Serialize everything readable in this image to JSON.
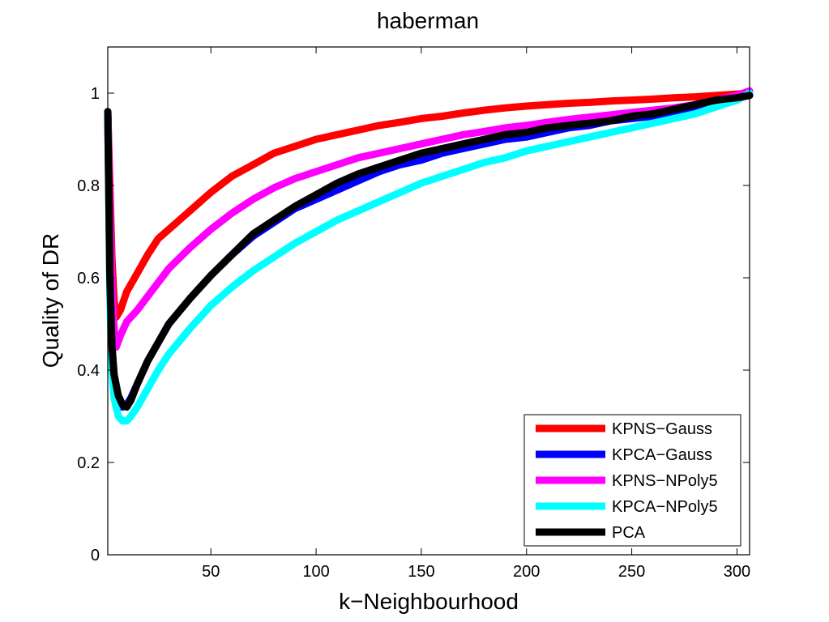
{
  "chart_data": {
    "type": "line",
    "title": "haberman",
    "xlabel": "k−Neighbourhood",
    "ylabel": "Quality of DR",
    "xlim": [
      1,
      306
    ],
    "ylim": [
      0,
      1.1
    ],
    "xticks": [
      50,
      100,
      150,
      200,
      250,
      300
    ],
    "yticks": [
      0,
      0.2,
      0.4,
      0.6,
      0.8,
      1
    ],
    "xtick_labels": [
      "50",
      "100",
      "150",
      "200",
      "250",
      "300"
    ],
    "ytick_labels": [
      "0",
      "0.2",
      "0.4",
      "0.6",
      "0.8",
      "1"
    ],
    "grid": false,
    "legend_position": "bottom-right",
    "series": [
      {
        "name": "KPNS−Gauss",
        "color": "#ff0000",
        "x": [
          1,
          2,
          3,
          4,
          5,
          7,
          10,
          15,
          20,
          25,
          30,
          40,
          50,
          60,
          70,
          80,
          90,
          100,
          110,
          120,
          130,
          140,
          150,
          160,
          170,
          180,
          190,
          200,
          210,
          220,
          230,
          240,
          250,
          260,
          270,
          280,
          290,
          300,
          306
        ],
        "y": [
          0.96,
          0.8,
          0.64,
          0.55,
          0.515,
          0.53,
          0.57,
          0.61,
          0.65,
          0.685,
          0.705,
          0.745,
          0.785,
          0.82,
          0.845,
          0.87,
          0.885,
          0.9,
          0.91,
          0.92,
          0.93,
          0.937,
          0.945,
          0.95,
          0.957,
          0.963,
          0.968,
          0.972,
          0.975,
          0.978,
          0.98,
          0.983,
          0.985,
          0.987,
          0.99,
          0.992,
          0.995,
          0.998,
          1.0
        ]
      },
      {
        "name": "KPCA−Gauss",
        "color": "#0000ff",
        "x": [
          1,
          2,
          3,
          4,
          6,
          8,
          10,
          12,
          15,
          20,
          25,
          30,
          40,
          50,
          60,
          70,
          80,
          90,
          100,
          110,
          120,
          130,
          140,
          150,
          160,
          170,
          180,
          190,
          200,
          210,
          220,
          230,
          240,
          250,
          260,
          270,
          280,
          290,
          300,
          306
        ],
        "y": [
          0.96,
          0.6,
          0.45,
          0.39,
          0.34,
          0.32,
          0.325,
          0.34,
          0.37,
          0.42,
          0.46,
          0.5,
          0.555,
          0.605,
          0.65,
          0.69,
          0.72,
          0.75,
          0.77,
          0.79,
          0.81,
          0.83,
          0.845,
          0.855,
          0.87,
          0.88,
          0.89,
          0.9,
          0.905,
          0.915,
          0.925,
          0.93,
          0.94,
          0.945,
          0.95,
          0.96,
          0.965,
          0.975,
          0.985,
          1.0
        ]
      },
      {
        "name": "KPNS−NPoly5",
        "color": "#ff00ff",
        "x": [
          1,
          2,
          3,
          4,
          5,
          7,
          10,
          15,
          20,
          25,
          30,
          40,
          50,
          60,
          70,
          80,
          90,
          100,
          110,
          120,
          130,
          140,
          150,
          160,
          170,
          180,
          190,
          200,
          210,
          220,
          230,
          240,
          250,
          260,
          270,
          280,
          290,
          300,
          306
        ],
        "y": [
          0.96,
          0.75,
          0.58,
          0.49,
          0.45,
          0.475,
          0.505,
          0.53,
          0.56,
          0.59,
          0.62,
          0.665,
          0.705,
          0.74,
          0.77,
          0.795,
          0.815,
          0.83,
          0.845,
          0.86,
          0.87,
          0.88,
          0.89,
          0.9,
          0.91,
          0.917,
          0.925,
          0.93,
          0.937,
          0.943,
          0.948,
          0.953,
          0.958,
          0.963,
          0.968,
          0.975,
          0.985,
          0.995,
          1.005
        ]
      },
      {
        "name": "KPCA−NPoly5",
        "color": "#00ffff",
        "x": [
          1,
          2,
          3,
          4,
          6,
          8,
          10,
          12,
          15,
          20,
          25,
          30,
          40,
          50,
          60,
          70,
          80,
          90,
          100,
          110,
          120,
          130,
          140,
          150,
          160,
          170,
          180,
          190,
          200,
          210,
          220,
          230,
          240,
          250,
          260,
          270,
          280,
          290,
          300,
          306
        ],
        "y": [
          0.96,
          0.55,
          0.4,
          0.34,
          0.3,
          0.29,
          0.29,
          0.3,
          0.32,
          0.36,
          0.4,
          0.435,
          0.49,
          0.54,
          0.58,
          0.615,
          0.645,
          0.675,
          0.7,
          0.725,
          0.745,
          0.765,
          0.785,
          0.805,
          0.82,
          0.835,
          0.85,
          0.86,
          0.875,
          0.885,
          0.895,
          0.905,
          0.915,
          0.925,
          0.935,
          0.945,
          0.955,
          0.97,
          0.985,
          1.0
        ]
      },
      {
        "name": "PCA",
        "color": "#000000",
        "x": [
          1,
          2,
          3,
          4,
          6,
          8,
          10,
          12,
          15,
          20,
          25,
          30,
          40,
          50,
          60,
          70,
          80,
          90,
          100,
          110,
          120,
          130,
          140,
          150,
          160,
          170,
          180,
          190,
          200,
          210,
          220,
          230,
          240,
          250,
          260,
          270,
          280,
          290,
          300,
          306
        ],
        "y": [
          0.96,
          0.6,
          0.45,
          0.39,
          0.345,
          0.325,
          0.32,
          0.335,
          0.37,
          0.42,
          0.46,
          0.5,
          0.555,
          0.605,
          0.65,
          0.695,
          0.725,
          0.755,
          0.78,
          0.805,
          0.825,
          0.84,
          0.855,
          0.87,
          0.88,
          0.89,
          0.9,
          0.91,
          0.915,
          0.925,
          0.93,
          0.935,
          0.94,
          0.95,
          0.955,
          0.965,
          0.975,
          0.985,
          0.99,
          0.995
        ]
      }
    ]
  }
}
